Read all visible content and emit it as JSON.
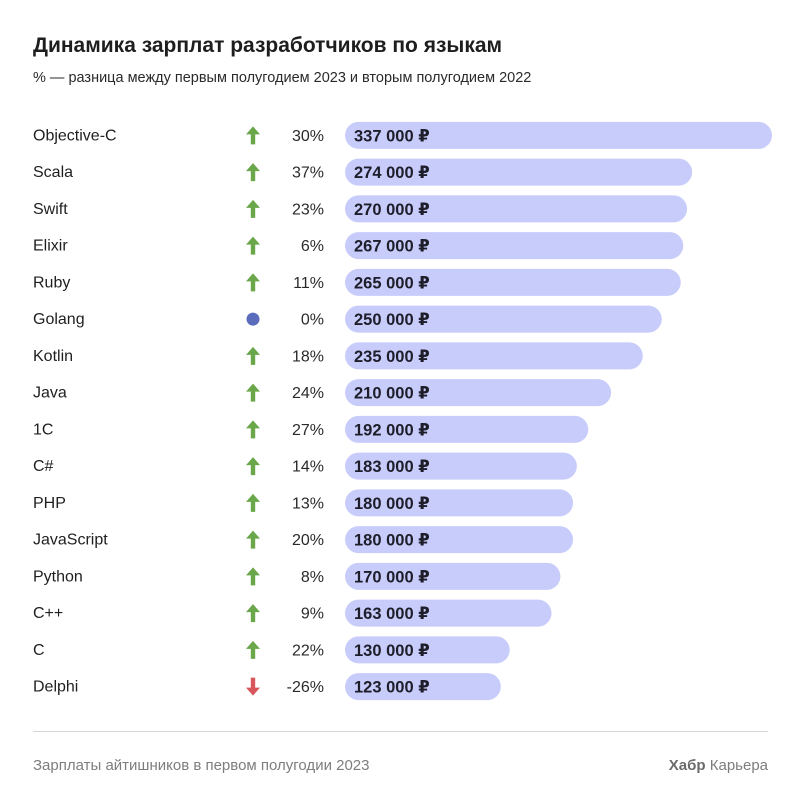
{
  "title": "Динамика зарплат разработчиков по языкам",
  "subtitle": "% — разница между первым полугодием 2023 и вторым полугодием 2022",
  "footer": {
    "source": "Зарплаты айтишников в первом полугодии 2023",
    "brand": "Хабр",
    "brand_suffix": "Карьера"
  },
  "colors": {
    "bar": "#c8ccfb",
    "up": "#6aa64a",
    "down": "#d9575c",
    "flat": "#5b6cbd"
  },
  "chart_data": {
    "type": "bar",
    "orientation": "horizontal",
    "unit": "₽",
    "categories": [
      "Objective-C",
      "Scala",
      "Swift",
      "Elixir",
      "Ruby",
      "Golang",
      "Kotlin",
      "Java",
      "1C",
      "C#",
      "PHP",
      "JavaScript",
      "Python",
      "C++",
      "C",
      "Delphi"
    ],
    "values": [
      337000,
      274000,
      270000,
      267000,
      265000,
      250000,
      235000,
      210000,
      192000,
      183000,
      180000,
      180000,
      170000,
      163000,
      130000,
      123000
    ],
    "value_labels": [
      "337 000 ₽",
      "274 000 ₽",
      "270 000 ₽",
      "267 000 ₽",
      "265 000 ₽",
      "250 000 ₽",
      "235 000 ₽",
      "210 000 ₽",
      "192 000 ₽",
      "183 000 ₽",
      "180 000 ₽",
      "180 000 ₽",
      "170 000 ₽",
      "163 000 ₽",
      "130 000 ₽",
      "123 000 ₽"
    ],
    "change_labels": [
      "30%",
      "37%",
      "23%",
      "6%",
      "11%",
      "0%",
      "18%",
      "24%",
      "27%",
      "14%",
      "13%",
      "20%",
      "8%",
      "9%",
      "22%",
      "-26%"
    ],
    "change_values": [
      30,
      37,
      23,
      6,
      11,
      0,
      18,
      24,
      27,
      14,
      13,
      20,
      8,
      9,
      22,
      -26
    ],
    "trend_icons": [
      "up-arrow",
      "up-arrow",
      "up-arrow",
      "up-arrow",
      "up-arrow",
      "dot",
      "up-arrow",
      "up-arrow",
      "up-arrow",
      "up-arrow",
      "up-arrow",
      "up-arrow",
      "up-arrow",
      "up-arrow",
      "up-arrow",
      "down-arrow"
    ],
    "grid": false,
    "legend": "none"
  }
}
